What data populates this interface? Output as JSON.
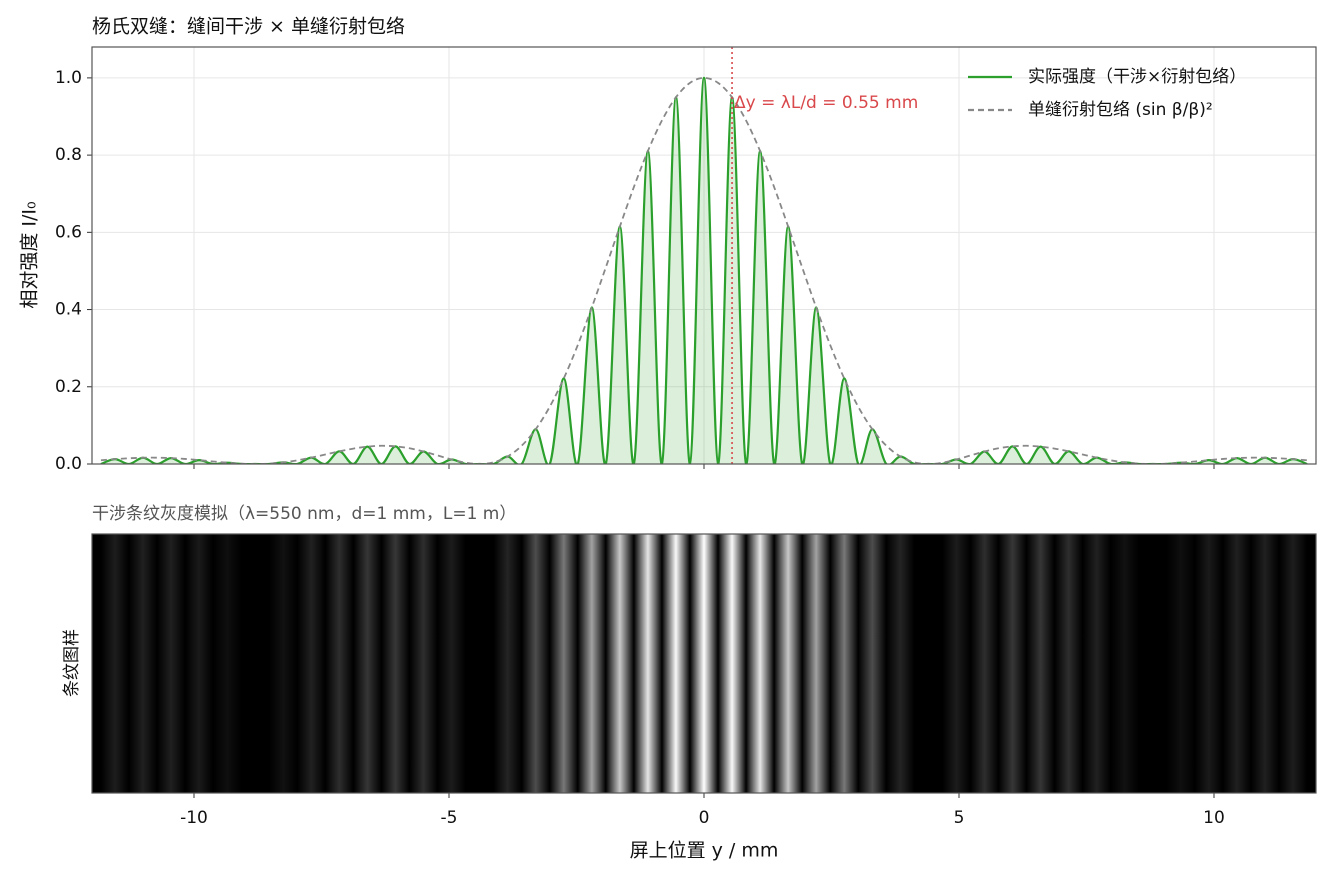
{
  "chart_data": [
    {
      "type": "line",
      "title": "杨氏双缝：缝间干涉 × 单缝衍射包络",
      "ylabel": "相对强度 I/I₀",
      "xlim": [
        -12,
        12
      ],
      "ylim": [
        0,
        1.08
      ],
      "xticks": [
        -10,
        -5,
        0,
        5,
        10
      ],
      "yticks": [
        {
          "value": 0,
          "label": "0.0"
        },
        0.2,
        0.4,
        0.6,
        0.8,
        {
          "value": 1,
          "label": "1.0"
        }
      ],
      "grid": true,
      "legend": "upper right",
      "x": [
        -11.825,
        -11.55,
        -11.275,
        -11,
        -10.725,
        -10.45,
        -10.175,
        -9.9,
        -9.625,
        -9.35,
        -9.075,
        -8.8,
        -8.525,
        -8.25,
        -7.975,
        -7.7,
        -7.425,
        -7.15,
        -6.875,
        -6.6,
        -6.325,
        -6.05,
        -5.775,
        -5.5,
        -5.225,
        -4.95,
        -4.675,
        -4.4,
        -4.125,
        -3.85,
        -3.575,
        -3.3,
        -3.025,
        -2.75,
        -2.475,
        -2.2,
        -1.925,
        -1.65,
        -1.375,
        -1.1,
        -0.825,
        -0.55,
        -0.275,
        0,
        0.275,
        0.55,
        0.825,
        1.1,
        1.375,
        1.65,
        1.925,
        2.2,
        2.475,
        2.75,
        3.025,
        3.3,
        3.575,
        3.85,
        4.125,
        4.4,
        4.675,
        4.95,
        5.225,
        5.5,
        5.775,
        6.05,
        6.325,
        6.6,
        6.875,
        7.15,
        7.425,
        7.7,
        7.975,
        8.25,
        8.525,
        8.8,
        9.075,
        9.35,
        9.625,
        9.9,
        10.175,
        10.45,
        10.725,
        11,
        11.275,
        11.55,
        11.825
      ],
      "series": [
        {
          "name": "实际强度（干涉×衍射包络）",
          "color": "#2ca02c",
          "style": "solid",
          "fill": true,
          "values": [
            0,
            0.0126,
            0,
            0.0162,
            0,
            0.0153,
            0,
            0.01,
            0,
            0.0033,
            0,
            0,
            0,
            0.0042,
            0,
            0.0165,
            0,
            0.0328,
            0,
            0.045,
            0,
            0.0457,
            0,
            0.0324,
            0,
            0.0117,
            0,
            0,
            0,
            0.0194,
            0,
            0.0901,
            0,
            0.2214,
            0,
            0.4053,
            0,
            0.615,
            0,
            0.8106,
            0,
            0.9497,
            0,
            1,
            0,
            0.9497,
            0,
            0.8106,
            0,
            0.615,
            0,
            0.4053,
            0,
            0.2214,
            0,
            0.0901,
            0,
            0.0194,
            0,
            0,
            0,
            0.0117,
            0,
            0.0324,
            0,
            0.0457,
            0,
            0.045,
            0,
            0.0328,
            0,
            0.0165,
            0,
            0.0042,
            0,
            0,
            0,
            0.0033,
            0,
            0.01,
            0,
            0.0153,
            0,
            0.0162,
            0,
            0.0126,
            0
          ]
        },
        {
          "name": "单缝衍射包络 (sin β/β)²",
          "color": "#888888",
          "style": "dashed",
          "fill": false,
          "values": [
            0.0097,
            0.0126,
            0.0148,
            0.0162,
            0.0164,
            0.0153,
            0.0131,
            0.01,
            0.0065,
            0.0033,
            0.0009,
            0,
            0.001,
            0.0042,
            0.0095,
            0.0165,
            0.0246,
            0.0328,
            0.0399,
            0.045,
            0.0472,
            0.0457,
            0.0407,
            0.0324,
            0.0222,
            0.0117,
            0.0034,
            0,
            0.0044,
            0.0194,
            0.0474,
            0.0901,
            0.1482,
            0.2214,
            0.308,
            0.4053,
            0.5092,
            0.615,
            0.7173,
            0.8106,
            0.8896,
            0.9497,
            0.9872,
            1,
            0.9872,
            0.9497,
            0.8896,
            0.8106,
            0.7173,
            0.615,
            0.5092,
            0.4053,
            0.308,
            0.2214,
            0.1482,
            0.0901,
            0.0474,
            0.0194,
            0.0044,
            0,
            0.0034,
            0.0117,
            0.0222,
            0.0324,
            0.0407,
            0.0457,
            0.0472,
            0.045,
            0.0399,
            0.0328,
            0.0246,
            0.0165,
            0.0095,
            0.0042,
            0.001,
            0,
            0.0009,
            0.0033,
            0.0065,
            0.01,
            0.0131,
            0.0153,
            0.0164,
            0.0162,
            0.0148,
            0.0126,
            0.0097
          ]
        }
      ],
      "annotation": {
        "text": "Δy = λL/d = 0.55 mm",
        "x": 0.55,
        "color": "#d9484b"
      }
    },
    {
      "type": "fringe",
      "title": "干涉条纹灰度模拟（λ=550 nm，d=1 mm，L=1 m）",
      "ylabel": "条纹图样",
      "xlabel": "屏上位置 y / mm",
      "xlim": [
        -12,
        12
      ],
      "xticks": [
        -10,
        -5,
        0,
        5,
        10
      ],
      "colormap": "gray"
    }
  ]
}
